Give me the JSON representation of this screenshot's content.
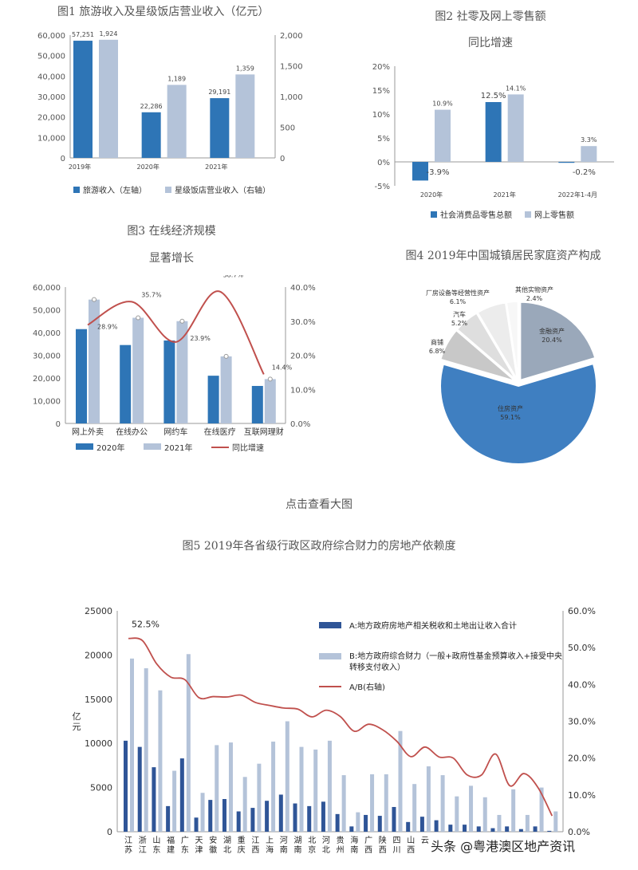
{
  "chart_data": [
    {
      "type": "bar",
      "title": "图1 旅游收入及星级饭店营业收入（亿元）",
      "categories": [
        "2019年",
        "2020年",
        "2021年"
      ],
      "yticks_left": [
        "0",
        "10,000",
        "20,000",
        "30,000",
        "40,000",
        "50,000",
        "60,000"
      ],
      "yticks_right": [
        "0",
        "500",
        "1,000",
        "1,500",
        "2,000"
      ],
      "ylim_left": [
        0,
        60000
      ],
      "ylim_right": [
        0,
        2000
      ],
      "series": [
        {
          "name": "旅游收入（左轴）",
          "axis": "left",
          "color": "#2e75b6",
          "values": [
            57251,
            22286,
            29191
          ],
          "labels": [
            "57,251",
            "22,286",
            "29,191"
          ]
        },
        {
          "name": "星级饭店营业收入（右轴）",
          "axis": "right",
          "color": "#b4c3d9",
          "values": [
            1924,
            1189,
            1359
          ],
          "labels": [
            "1,924",
            "1,189",
            "1,359"
          ]
        }
      ]
    },
    {
      "type": "bar",
      "title_line1": "图2 社零及网上零售额",
      "title_line2": "同比增速",
      "categories": [
        "2020年",
        "2021年",
        "2022年1-4月"
      ],
      "yticks": [
        "-5%",
        "0%",
        "5%",
        "10%",
        "15%",
        "20%"
      ],
      "ylim": [
        -5,
        20
      ],
      "series": [
        {
          "name": "社会消费品零售总额",
          "color": "#2e75b6",
          "values": [
            -3.9,
            12.5,
            -0.2
          ],
          "labels": [
            "-3.9%",
            "12.5%",
            "-0.2%"
          ]
        },
        {
          "name": "网上零售额",
          "color": "#b4c3d9",
          "values": [
            10.9,
            14.1,
            3.3
          ],
          "labels": [
            "10.9%",
            "14.1%",
            "3.3%"
          ]
        }
      ]
    },
    {
      "type": "bar",
      "title_line1": "图3 在线经济规模",
      "title_line2": "显著增长",
      "categories": [
        "网上外卖",
        "在线办公",
        "网约车",
        "在线医疗",
        "互联网理财"
      ],
      "yticks_left": [
        "0",
        "10,000",
        "20,000",
        "30,000",
        "40,000",
        "50,000",
        "60,000"
      ],
      "yticks_right": [
        "0.0%",
        "10.0%",
        "20.0%",
        "30.0%",
        "40.0%"
      ],
      "ylim_left": [
        0,
        60000
      ],
      "ylim_right": [
        0,
        40
      ],
      "series": [
        {
          "name": "2020年",
          "axis": "left",
          "color": "#2e75b6",
          "values": [
            41500,
            34500,
            36500,
            21000,
            16500
          ]
        },
        {
          "name": "2021年",
          "axis": "left",
          "color": "#b4c3d9",
          "values": [
            54500,
            46500,
            45000,
            29500,
            19500
          ]
        },
        {
          "name": "同比增速",
          "axis": "right",
          "type": "line",
          "color": "#c0504d",
          "values": [
            28.9,
            35.7,
            23.9,
            38.7,
            14.4
          ],
          "labels": [
            "28.9%",
            "35.7%",
            "23.9%",
            "38.7%",
            "14.4%"
          ]
        }
      ]
    },
    {
      "type": "pie",
      "title": "图4 2019年中国城镇居民家庭资产构成",
      "slices": [
        {
          "name": "金融资产",
          "value": 20.4,
          "label": "20.4%",
          "color": "#9aa8ba"
        },
        {
          "name": "住房资产",
          "value": 59.1,
          "label": "59.1%",
          "color": "#3f7fc1"
        },
        {
          "name": "商铺",
          "value": 6.8,
          "label": "6.8%",
          "color": "#c8c8c8"
        },
        {
          "name": "汽车",
          "value": 5.2,
          "label": "5.2%",
          "color": "#dedede"
        },
        {
          "name": "厂房设备等经营性资产",
          "value": 6.1,
          "label": "6.1%",
          "color": "#ececec"
        },
        {
          "name": "其他实物资产",
          "value": 2.4,
          "label": "2.4%",
          "color": "#f7f7f7"
        }
      ]
    },
    {
      "type": "bar",
      "title": "图5 2019年各省级行政区政府综合财力的房地产依赖度",
      "ylabel": "亿元",
      "yticks_left": [
        "0",
        "5000",
        "10000",
        "15000",
        "20000",
        "25000"
      ],
      "yticks_right": [
        "0.0%",
        "10.0%",
        "20.0%",
        "30.0%",
        "40.0%",
        "50.0%",
        "60.0%"
      ],
      "ylim_left": [
        0,
        25000
      ],
      "ylim_right": [
        0,
        60
      ],
      "peak_label": "52.5%",
      "categories": [
        "江苏",
        "浙江",
        "山东",
        "福建",
        "广东",
        "天津",
        "安徽",
        "湖北",
        "重庆",
        "江西",
        "上海",
        "河南",
        "湖南",
        "北京",
        "河北",
        "贵州",
        "海南",
        "广西",
        "陕西",
        "四川",
        "山西",
        "云南",
        "辽宁",
        "内蒙古",
        "吉林",
        "甘肃",
        "宁夏",
        "黑龙江",
        "青海",
        "新疆",
        "西藏"
      ],
      "tick_labels_visible": [
        "江苏",
        "浙江",
        "山东",
        "福建",
        "广东",
        "天津",
        "安徽",
        "湖北",
        "重庆",
        "江西",
        "上海",
        "河南",
        "湖南",
        "北京",
        "河北",
        "贵州",
        "海南",
        "广西",
        "陕西",
        "四川",
        "山西",
        "云"
      ],
      "series": [
        {
          "name": "A:地方政府房地产相关税收和土地出让收入合计",
          "color": "#2f5597",
          "values": [
            10300,
            9600,
            7300,
            2900,
            8300,
            1600,
            3600,
            3700,
            2300,
            2700,
            3500,
            4200,
            3200,
            2900,
            3400,
            2000,
            600,
            1900,
            1800,
            2800,
            1100,
            1700,
            1300,
            800,
            800,
            600,
            400,
            600,
            300,
            600,
            100
          ]
        },
        {
          "name": "B:地方政府综合财力（一般+政府性基金预算收入+接受中央转移支付收入）",
          "color": "#b4c3d9",
          "values": [
            19600,
            18500,
            16000,
            6900,
            20100,
            4400,
            9800,
            10100,
            6200,
            7700,
            10200,
            12500,
            9600,
            9300,
            10300,
            6400,
            2200,
            6500,
            6500,
            11400,
            5400,
            7400,
            6400,
            4000,
            5200,
            3900,
            1900,
            4800,
            1900,
            5000,
            2300
          ]
        },
        {
          "name": "A/B(右轴)",
          "axis": "right",
          "type": "line",
          "color": "#c0504d",
          "values": [
            52.5,
            51.9,
            45.6,
            42.0,
            41.3,
            36.4,
            36.7,
            36.6,
            37.1,
            35.1,
            34.3,
            33.6,
            33.3,
            31.2,
            33.0,
            31.3,
            27.3,
            29.2,
            27.7,
            24.6,
            20.4,
            23.0,
            20.3,
            20.0,
            15.4,
            15.4,
            21.1,
            12.5,
            15.8,
            12.0,
            4.3
          ]
        }
      ]
    }
  ],
  "link_text": "点击查看大图",
  "watermark": "头条 @粤港澳区地产资讯"
}
